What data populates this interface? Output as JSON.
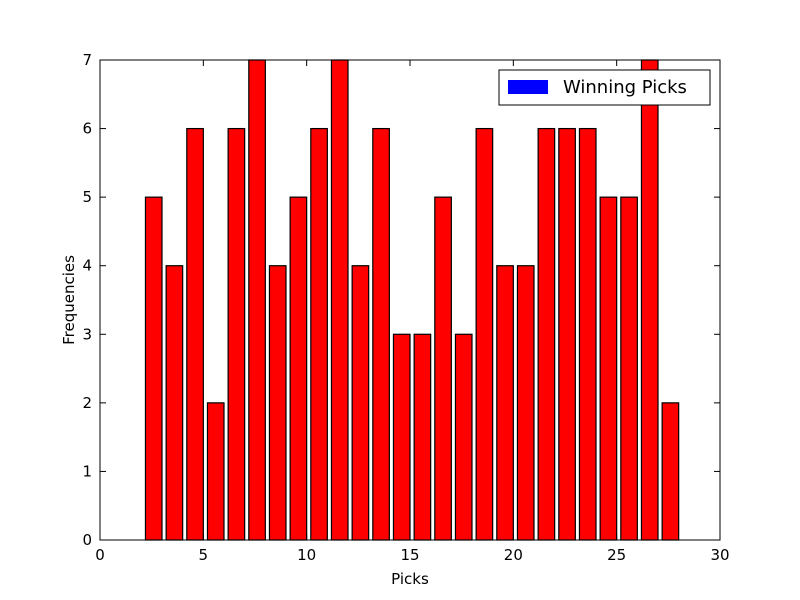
{
  "chart_data": {
    "type": "bar",
    "title": "",
    "xlabel": "Picks",
    "ylabel": "Frequencies",
    "xlim": [
      0,
      30
    ],
    "ylim": [
      0,
      7
    ],
    "xticks": [
      0,
      5,
      10,
      15,
      20,
      25,
      30
    ],
    "yticks": [
      0,
      1,
      2,
      3,
      4,
      5,
      6,
      7
    ],
    "grid": false,
    "legend": {
      "position": "top-right",
      "entries": [
        {
          "label": "Winning Picks",
          "color": "#0000ff"
        }
      ]
    },
    "bar_color": "#ff0000",
    "bar_edge_color": "#000000",
    "x": [
      1,
      2,
      3,
      4,
      5,
      6,
      7,
      8,
      9,
      10,
      11,
      12,
      13,
      14,
      15,
      16,
      17,
      18,
      19,
      20,
      21,
      22,
      23,
      24,
      25,
      26,
      27
    ],
    "values": [
      0,
      5,
      4,
      6,
      2,
      6,
      7,
      4,
      5,
      6,
      7,
      4,
      6,
      3,
      3,
      5,
      3,
      6,
      4,
      4,
      6,
      6,
      6,
      5,
      5,
      7,
      2
    ]
  }
}
